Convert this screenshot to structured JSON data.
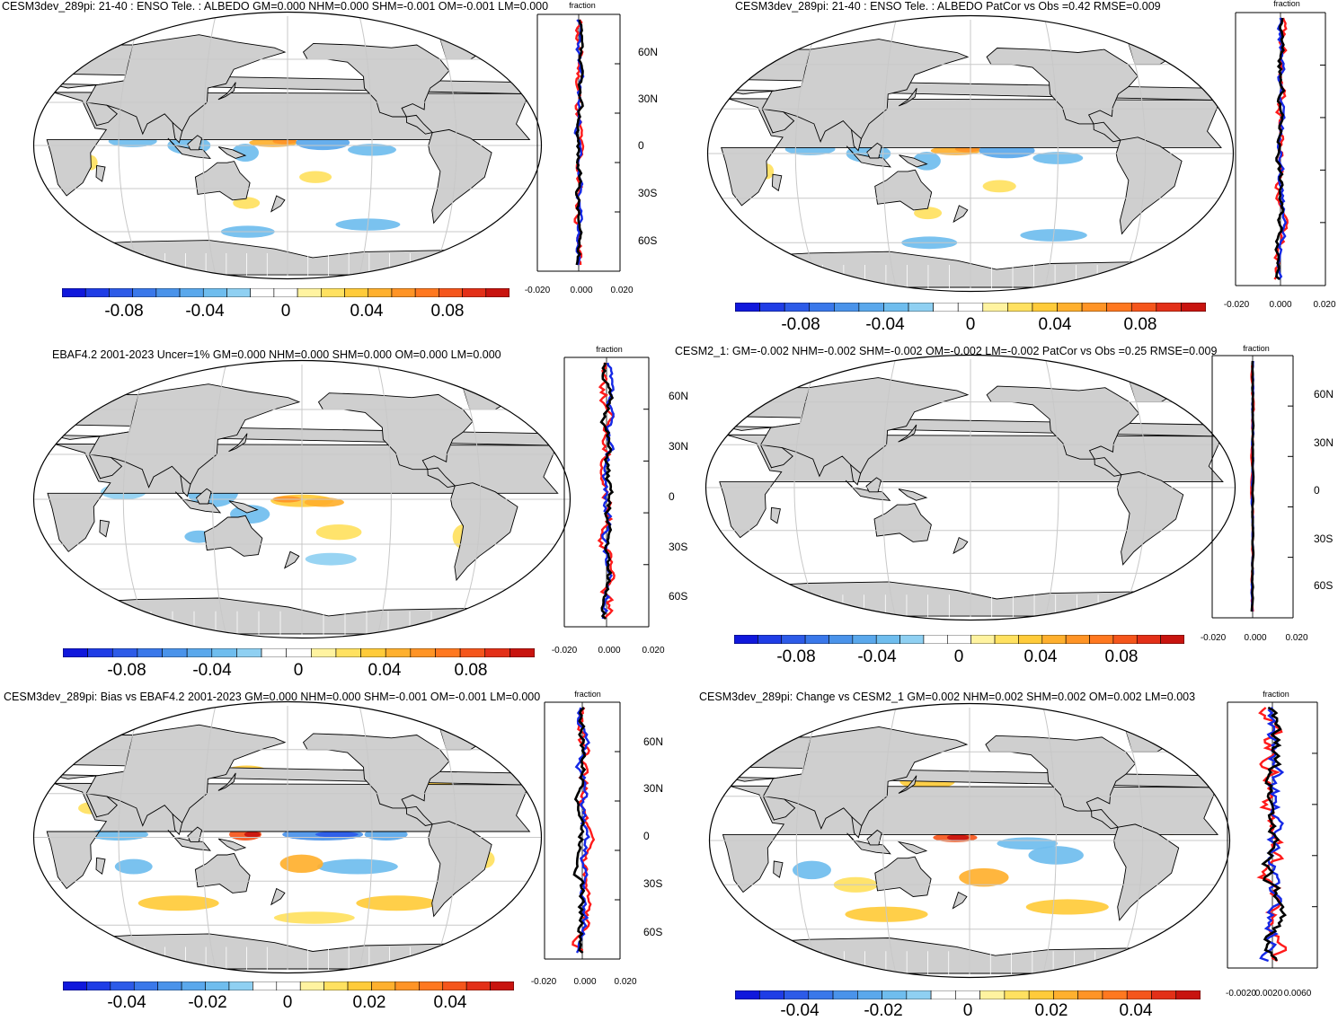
{
  "palette": {
    "div": [
      "#1018dc",
      "#1f3de6",
      "#2d5be8",
      "#3a78ea",
      "#4a93ea",
      "#5aa8ec",
      "#6fbdee",
      "#8fd0f2",
      "#ffffff",
      "#ffffff",
      "#fff3a0",
      "#ffe160",
      "#ffcb3a",
      "#ffb02e",
      "#ff9426",
      "#ff7820",
      "#f5561c",
      "#e33018",
      "#c8140f"
    ],
    "land": "#cfcfcf",
    "ocean": "#ffffff",
    "grid": "#c8c8c8",
    "red": "#ff1a1a",
    "blue": "#1428e6",
    "black": "#000000"
  },
  "panels": [
    {
      "title": "CESM3dev_289pi: 21-40 : ENSO Tele. : ALBEDO GM=0.000 NHM=0.000 SHM=-0.001 OM=-0.001 LM=0.000",
      "cbar_labels": [
        "-0.08",
        "-0.04",
        "0",
        "0.04",
        "0.08"
      ],
      "side_xticks": [
        "-0.020",
        "0.000",
        "0.020"
      ],
      "side_lat": [
        "60N",
        "30N",
        "0",
        "30S",
        "60S"
      ],
      "side_title": "fraction",
      "anomaly": "model"
    },
    {
      "title": "CESM3dev_289pi: 21-40 : ENSO Tele. : ALBEDO PatCor vs Obs =0.42 RMSE=0.009",
      "cbar_labels": [
        "-0.08",
        "-0.04",
        "0",
        "0.04",
        "0.08"
      ],
      "side_xticks": [
        "-0.020",
        "0.000",
        "0.020"
      ],
      "side_lat": [],
      "side_title": "fraction",
      "anomaly": "model"
    },
    {
      "title": "EBAF4.2 2001-2023 Uncer=1% GM=0.000 NHM=0.000 SHM=0.000 OM=0.000 LM=0.000",
      "cbar_labels": [
        "-0.08",
        "-0.04",
        "0",
        "0.04",
        "0.08"
      ],
      "side_xticks": [
        "-0.020",
        "0.000",
        "0.020"
      ],
      "side_lat": [
        "60N",
        "30N",
        "0",
        "30S",
        "60S"
      ],
      "side_title": "fraction",
      "anomaly": "obs"
    },
    {
      "title": "CESM2_1: GM=-0.002 NHM=-0.002 SHM=-0.002 OM=-0.002 LM=-0.002 PatCor vs Obs =0.25 RMSE=0.009",
      "cbar_labels": [
        "-0.08",
        "-0.04",
        "0",
        "0.04",
        "0.08"
      ],
      "side_xticks": [
        "-0.020",
        "0.000",
        "0.020"
      ],
      "side_lat": [
        "60N",
        "30N",
        "0",
        "30S",
        "60S"
      ],
      "side_title": "fraction",
      "anomaly": "none"
    },
    {
      "title": "CESM3dev_289pi: Bias vs EBAF4.2 2001-2023 GM=0.000 NHM=0.000 SHM=-0.001 OM=-0.001 LM=0.000",
      "cbar_labels": [
        "-0.04",
        "-0.02",
        "0",
        "0.02",
        "0.04"
      ],
      "side_xticks": [
        "-0.020",
        "0.000",
        "0.020"
      ],
      "side_lat": [
        "60N",
        "30N",
        "0",
        "30S",
        "60S"
      ],
      "side_title": "fraction",
      "anomaly": "bias"
    },
    {
      "title": "CESM3dev_289pi: Change vs CESM2_1 GM=0.002 NHM=0.002 SHM=0.002 OM=0.002 LM=0.003",
      "cbar_labels": [
        "-0.04",
        "-0.02",
        "0",
        "0.02",
        "0.04"
      ],
      "side_xticks": [
        "-0.0020",
        "0.0020",
        "0.0060"
      ],
      "side_lat": [],
      "side_title": "fraction",
      "anomaly": "change"
    }
  ]
}
